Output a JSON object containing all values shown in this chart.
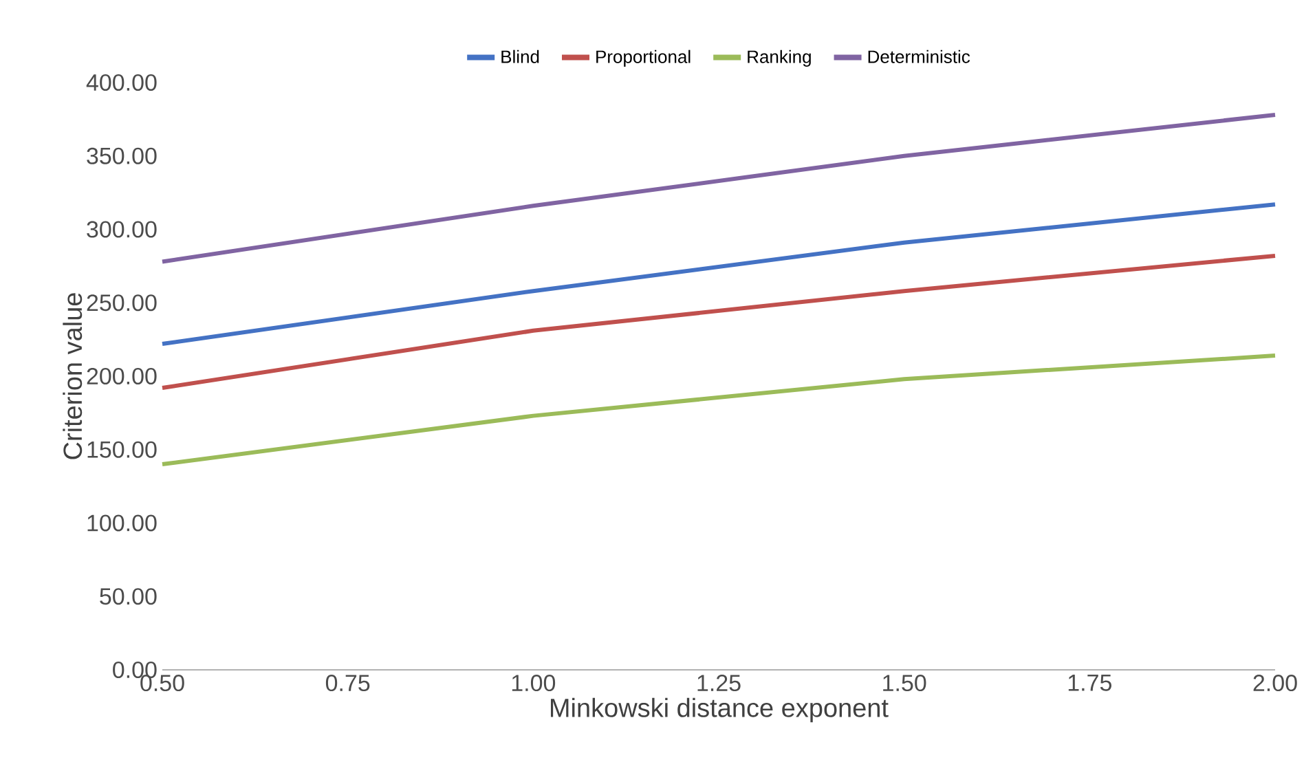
{
  "chart_data": {
    "type": "line",
    "xlabel": "Minkowski distance exponent",
    "ylabel": "Criterion value",
    "x": [
      0.5,
      1.0,
      1.5,
      2.0
    ],
    "series": [
      {
        "name": "Blind",
        "color": "#4472c4",
        "values": [
          222,
          258,
          291,
          317
        ]
      },
      {
        "name": "Proportional",
        "color": "#c0504d",
        "values": [
          192,
          231,
          258,
          282
        ]
      },
      {
        "name": "Ranking",
        "color": "#9bbb59",
        "values": [
          140,
          173,
          198,
          214
        ]
      },
      {
        "name": "Deterministic",
        "color": "#8064a2",
        "values": [
          278,
          316,
          350,
          378
        ]
      }
    ],
    "xlim": [
      0.5,
      2.0
    ],
    "xticks": [
      {
        "value": 0.5,
        "label": "0.50"
      },
      {
        "value": 0.75,
        "label": "0.75"
      },
      {
        "value": 1.0,
        "label": "1.00"
      },
      {
        "value": 1.25,
        "label": "1.25"
      },
      {
        "value": 1.5,
        "label": "1.50"
      },
      {
        "value": 1.75,
        "label": "1.75"
      },
      {
        "value": 2.0,
        "label": "2.00"
      }
    ],
    "ylim": [
      0,
      400
    ],
    "yticks": [
      {
        "value": 0,
        "label": "0.00"
      },
      {
        "value": 50,
        "label": "50.00"
      },
      {
        "value": 100,
        "label": "100.00"
      },
      {
        "value": 150,
        "label": "150.00"
      },
      {
        "value": 200,
        "label": "200.00"
      },
      {
        "value": 250,
        "label": "250.00"
      },
      {
        "value": 300,
        "label": "300.00"
      },
      {
        "value": 350,
        "label": "350.00"
      },
      {
        "value": 400,
        "label": "400.00"
      }
    ],
    "grid": false,
    "legend": "top",
    "marker": "none",
    "line_style": "solid"
  }
}
